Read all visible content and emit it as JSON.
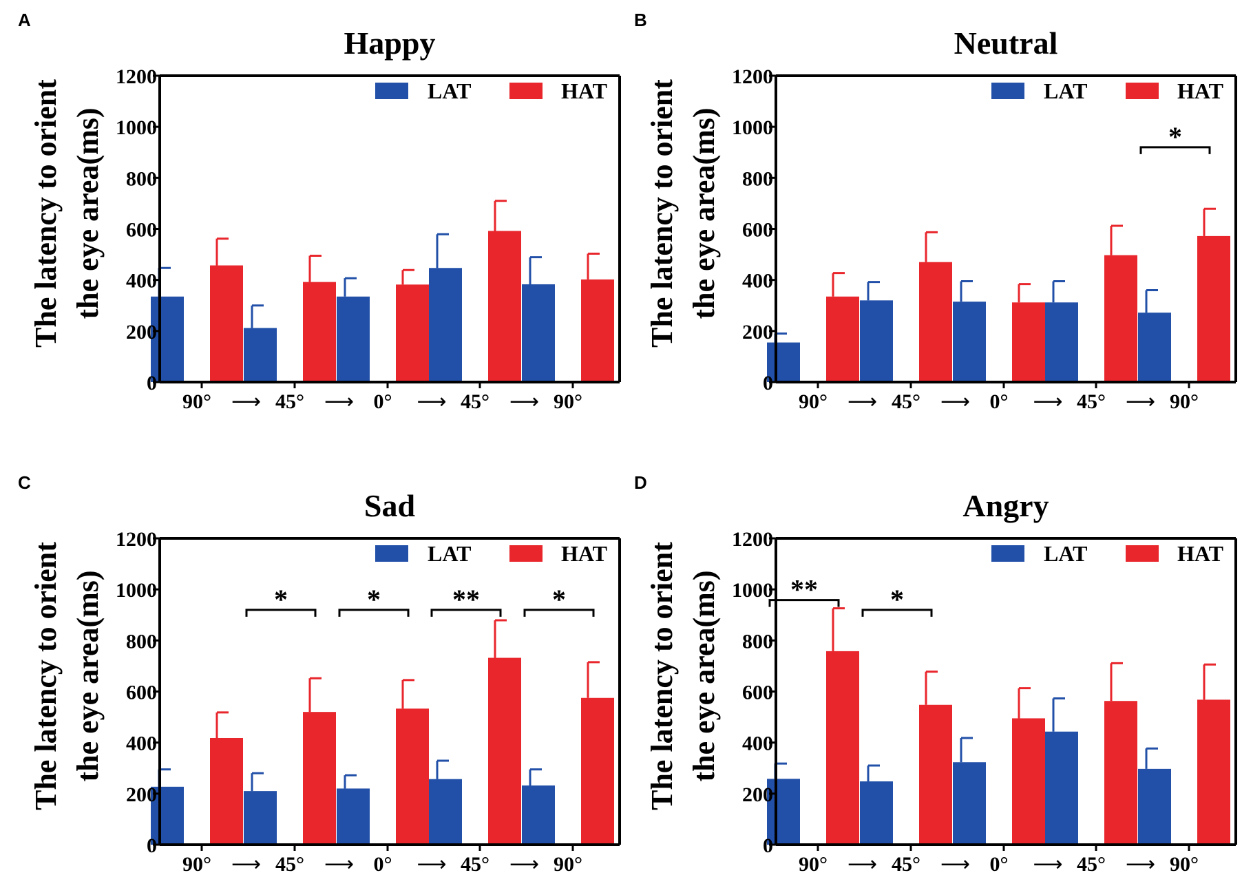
{
  "colors": {
    "lat": "#2250a8",
    "hat": "#e8262c",
    "axis": "#000000"
  },
  "arrow_glyph": "⟶",
  "chart_data": [
    {
      "panel": "A",
      "type": "bar",
      "title": "Happy",
      "ylabel_lines": [
        "The latency to orient",
        "the eye  area(ms)"
      ],
      "categories": [
        "90°",
        "45°",
        "0°",
        "45°",
        "90°"
      ],
      "ylim": [
        0,
        1200
      ],
      "yticks": [
        "0",
        "200",
        "400",
        "600",
        "800",
        "1000",
        "1200"
      ],
      "legend": [
        "LAT",
        "HAT"
      ],
      "legend_position": "top-right",
      "series": [
        {
          "name": "LAT",
          "values": [
            335,
            212,
            335,
            447,
            383
          ],
          "errors": [
            112,
            88,
            72,
            132,
            106
          ]
        },
        {
          "name": "HAT",
          "values": [
            457,
            392,
            382,
            592,
            402
          ],
          "errors": [
            105,
            103,
            57,
            118,
            101
          ]
        }
      ],
      "significance": []
    },
    {
      "panel": "B",
      "type": "bar",
      "title": "Neutral",
      "ylabel_lines": [
        "The latency to orient",
        "the eye  area(ms)"
      ],
      "categories": [
        "90°",
        "45°",
        "0°",
        "45°",
        "90°"
      ],
      "ylim": [
        0,
        1200
      ],
      "yticks": [
        "0",
        "200",
        "400",
        "600",
        "800",
        "1000",
        "1200"
      ],
      "legend": [
        "LAT",
        "HAT"
      ],
      "legend_position": "top-right",
      "series": [
        {
          "name": "LAT",
          "values": [
            155,
            320,
            315,
            312,
            272
          ],
          "errors": [
            35,
            72,
            80,
            83,
            88
          ]
        },
        {
          "name": "HAT",
          "values": [
            335,
            470,
            312,
            497,
            572
          ],
          "errors": [
            92,
            117,
            72,
            115,
            107
          ]
        }
      ],
      "significance": [
        {
          "category_index": 4,
          "label": "*"
        }
      ]
    },
    {
      "panel": "C",
      "type": "bar",
      "title": "Sad",
      "ylabel_lines": [
        "The latency to orient",
        "the eye  area(ms)"
      ],
      "categories": [
        "90°",
        "45°",
        "0°",
        "45°",
        "90°"
      ],
      "ylim": [
        0,
        1200
      ],
      "yticks": [
        "0",
        "200",
        "400",
        "600",
        "800",
        "1000",
        "1200"
      ],
      "legend": [
        "LAT",
        "HAT"
      ],
      "legend_position": "top-right",
      "series": [
        {
          "name": "LAT",
          "values": [
            227,
            210,
            220,
            257,
            232
          ],
          "errors": [
            68,
            70,
            52,
            72,
            63
          ]
        },
        {
          "name": "HAT",
          "values": [
            418,
            520,
            533,
            732,
            575
          ],
          "errors": [
            100,
            132,
            112,
            147,
            140
          ]
        }
      ],
      "significance": [
        {
          "category_index": 1,
          "label": "*"
        },
        {
          "category_index": 2,
          "label": "*"
        },
        {
          "category_index": 3,
          "label": "**"
        },
        {
          "category_index": 4,
          "label": "*"
        }
      ]
    },
    {
      "panel": "D",
      "type": "bar",
      "title": "Angry",
      "ylabel_lines": [
        "The latency to orient",
        "the eye  area(ms)"
      ],
      "categories": [
        "90°",
        "45°",
        "0°",
        "45°",
        "90°"
      ],
      "ylim": [
        0,
        1200
      ],
      "yticks": [
        "0",
        "200",
        "400",
        "600",
        "800",
        "1000",
        "1200"
      ],
      "legend": [
        "LAT",
        "HAT"
      ],
      "legend_position": "top-right",
      "series": [
        {
          "name": "LAT",
          "values": [
            258,
            248,
            323,
            443,
            297
          ],
          "errors": [
            60,
            62,
            95,
            130,
            80
          ]
        },
        {
          "name": "HAT",
          "values": [
            758,
            548,
            495,
            563,
            568
          ],
          "errors": [
            168,
            130,
            118,
            148,
            138
          ]
        }
      ],
      "significance": [
        {
          "category_index": 0,
          "label": "**"
        },
        {
          "category_index": 1,
          "label": "*"
        }
      ]
    }
  ]
}
